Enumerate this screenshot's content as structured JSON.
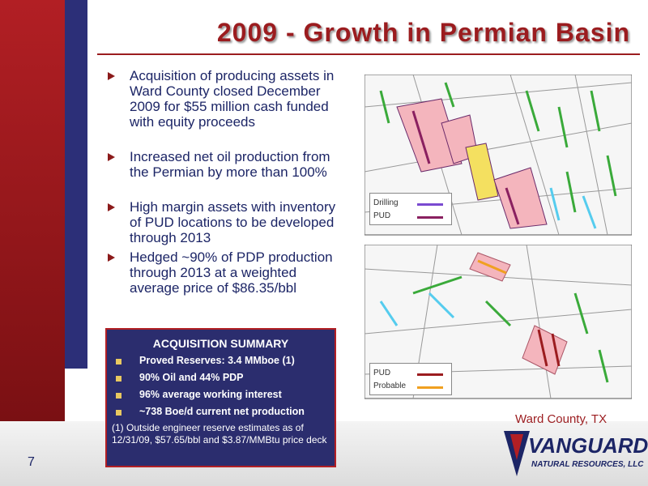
{
  "slide": {
    "title": "2009 - Growth in Permian Basin",
    "bullets": [
      "Acquisition of producing assets in Ward County closed December 2009 for $55 million cash funded with equity proceeds",
      "Increased net oil production from the Permian by more than 100%",
      "High margin assets with inventory of PUD locations to be developed through 2013",
      "Hedged ~90% of PDP production through 2013 at a weighted average price of $86.35/bbl"
    ],
    "summary": {
      "title": "ACQUISITION SUMMARY",
      "items": [
        "Proved Reserves: 3.4 MMboe (1)",
        "90% Oil and 44% PDP",
        "96% average working interest",
        "~738 Boe/d current net production"
      ],
      "footnote": "(1) Outside engineer reserve estimates as of 12/31/09, $57.65/bbl and $3.87/MMBtu price deck"
    },
    "map_top_legend": [
      "Drilling",
      "PUD"
    ],
    "map_bottom_legend": [
      "PUD",
      "Probable"
    ],
    "map_caption": "Ward County, TX",
    "page_number": "7",
    "logo": {
      "name": "VANGUARD",
      "subtitle": "NATURAL RESOURCES, LLC"
    }
  }
}
